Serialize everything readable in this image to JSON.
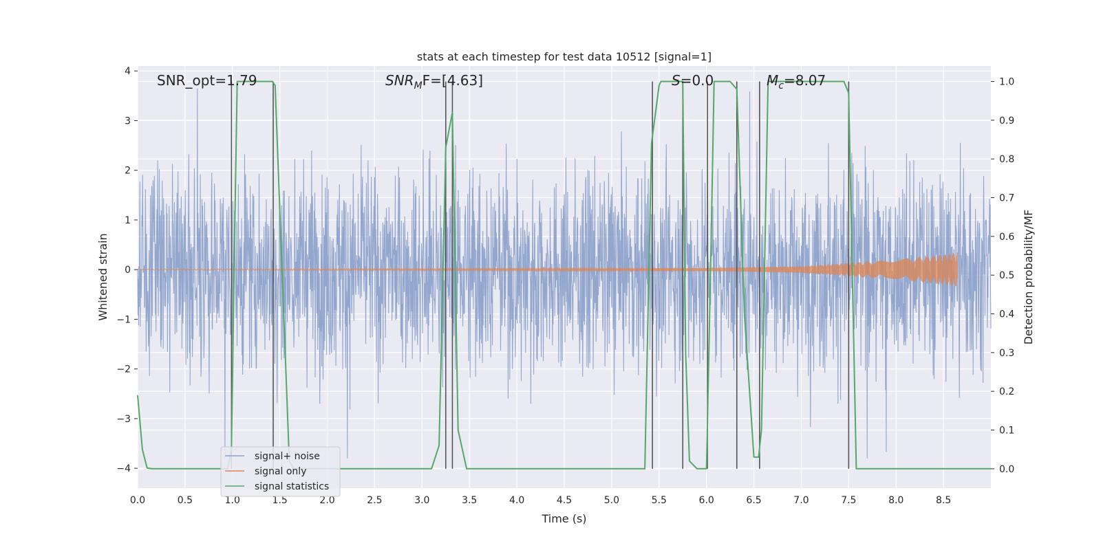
{
  "chart_data": {
    "type": "line",
    "title": "stats at each timestep for test data 10512 [signal=1]",
    "xlabel": "Time (s)",
    "ylabel": "Whitened strain",
    "ylabel_right": "Detection probability/MF",
    "xlim": [
      0.0,
      9.0
    ],
    "ylim": [
      -4.4,
      4.1
    ],
    "ylim_right": [
      -0.05,
      1.04
    ],
    "xticks": [
      "0.0",
      "0.5",
      "1.0",
      "1.5",
      "2.0",
      "2.5",
      "3.0",
      "3.5",
      "4.0",
      "4.5",
      "5.0",
      "5.5",
      "6.0",
      "6.5",
      "7.0",
      "7.5",
      "8.0",
      "8.5"
    ],
    "yticks": [
      "4",
      "3",
      "2",
      "1",
      "0",
      "−1",
      "−2",
      "−3",
      "−4"
    ],
    "yticks_right": [
      "1.0",
      "0.9",
      "0.8",
      "0.7",
      "0.6",
      "0.5",
      "0.4",
      "0.3",
      "0.2",
      "0.1",
      "0.0"
    ],
    "grid": true,
    "legend_position": "lower-left",
    "annotations": {
      "snr_opt": "SNR_opt=1.79",
      "snr_mf_base": "SNR",
      "snr_mf_sub": "M",
      "snr_mf_rest": "F=[4.63]",
      "s_label": "S",
      "s_value": "=0.0",
      "mc_base": "M",
      "mc_sub": "c",
      "mc_value": "=8.07"
    },
    "series": [
      {
        "name": "signal+ noise",
        "color": "#8ea2cb",
        "description_x_range": [
          0.0,
          9.0
        ],
        "amplitude_typical": 1.6,
        "amplitude_peak": 3.8
      },
      {
        "name": "signal only",
        "color": "#dd8452",
        "x_range": [
          0.0,
          8.65
        ],
        "envelope": [
          [
            0.0,
            0.01
          ],
          [
            6.0,
            0.03
          ],
          [
            7.0,
            0.07
          ],
          [
            8.0,
            0.2
          ],
          [
            8.5,
            0.3
          ],
          [
            8.65,
            0.35
          ]
        ]
      },
      {
        "name": "signal statistics",
        "color": "#55a868",
        "x": [
          0.0,
          0.05,
          0.1,
          0.15,
          0.95,
          0.99,
          1.02,
          1.05,
          1.08,
          1.42,
          1.45,
          1.6,
          1.65,
          3.1,
          3.18,
          3.25,
          3.32,
          3.38,
          3.47,
          3.52,
          5.35,
          5.42,
          5.5,
          5.52,
          5.75,
          5.78,
          5.82,
          5.9,
          6.0,
          6.05,
          6.08,
          6.25,
          6.32,
          6.4,
          6.5,
          6.55,
          6.58,
          6.65,
          7.45,
          7.5,
          7.58,
          7.65,
          9.0
        ],
        "y": [
          0.19,
          0.05,
          0.002,
          0.0,
          0.0,
          0.05,
          0.55,
          1.0,
          1.0,
          1.0,
          0.99,
          0.02,
          0.0,
          0.0,
          0.06,
          0.83,
          0.92,
          0.1,
          0.0,
          0.0,
          0.0,
          0.84,
          0.99,
          1.0,
          1.0,
          0.3,
          0.02,
          0.0,
          0.0,
          0.6,
          1.0,
          1.0,
          0.98,
          0.4,
          0.03,
          0.03,
          0.1,
          1.0,
          1.0,
          0.97,
          0.0,
          0.0,
          0.0
        ]
      }
    ],
    "vlines": [
      0.99,
      1.43,
      3.25,
      3.32,
      5.43,
      5.75,
      6.01,
      6.32,
      6.56,
      7.5
    ]
  }
}
